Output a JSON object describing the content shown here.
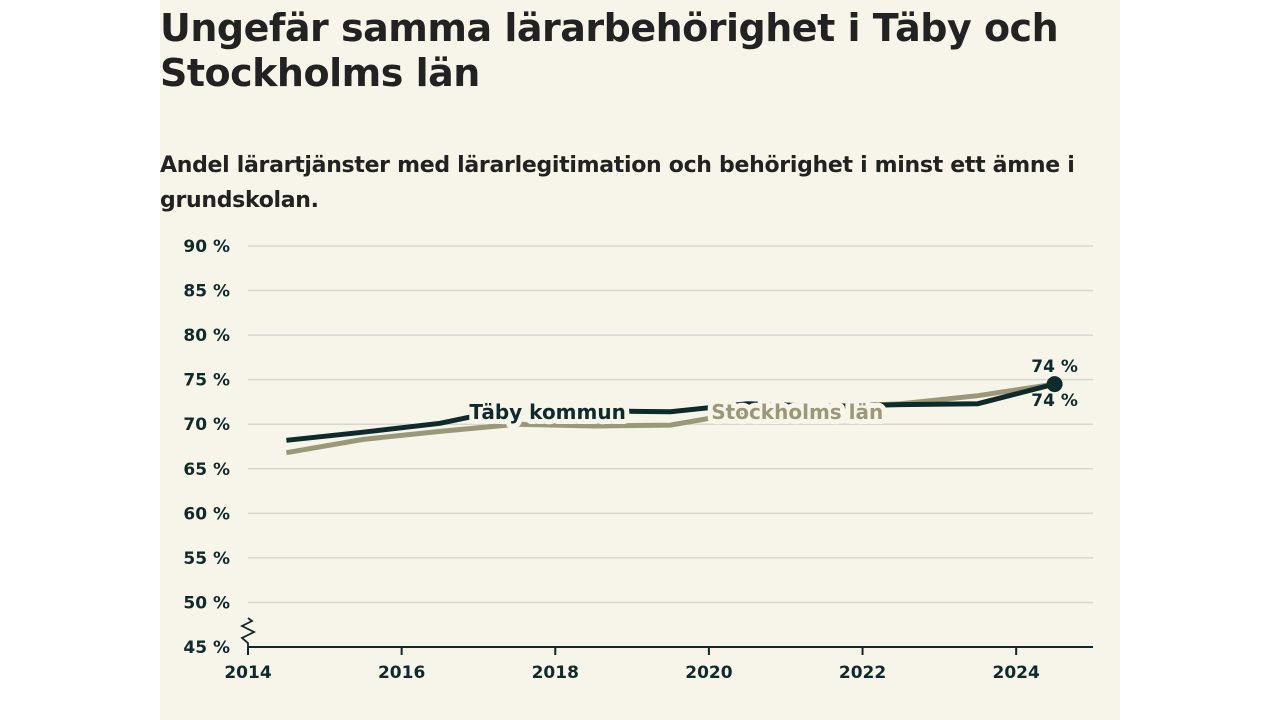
{
  "title": "Ungefär samma lärarbehörighet i Täby och Stockholms län",
  "subtitle": "Andel lärartjänster med lärarlegitimation och behörighet i minst ett ämne i grundskolan.",
  "chart_data": {
    "type": "line",
    "x_ticks": [
      2014,
      2016,
      2018,
      2020,
      2022,
      2024
    ],
    "x_tick_labels": [
      "2014",
      "2016",
      "2018",
      "2020",
      "2022",
      "2024"
    ],
    "xlim": [
      2014,
      2025
    ],
    "y_ticks": [
      45,
      50,
      55,
      60,
      65,
      70,
      75,
      80,
      85,
      90
    ],
    "y_tick_labels": [
      "45 %",
      "50 %",
      "55 %",
      "60 %",
      "65 %",
      "70 %",
      "75 %",
      "80 %",
      "85 %",
      "90 %"
    ],
    "ylim": [
      45,
      90
    ],
    "axis_break": true,
    "grid": true,
    "series": [
      {
        "name": "Täby kommun",
        "color": "#0e2a2a",
        "x": [
          2014.5,
          2015.5,
          2016.5,
          2017.5,
          2018.5,
          2019.5,
          2020.5,
          2021.5,
          2022.5,
          2023.5,
          2024.5
        ],
        "y": [
          68.2,
          69.1,
          70.1,
          71.9,
          71.5,
          71.4,
          72.3,
          72.0,
          72.2,
          72.3,
          74.5
        ],
        "end_label": "74 %"
      },
      {
        "name": "Stockholms län",
        "color": "#9a9878",
        "x": [
          2014.5,
          2015.5,
          2016.5,
          2017.5,
          2018.5,
          2019.5,
          2020.5,
          2021.5,
          2022.5,
          2023.5,
          2024.5
        ],
        "y": [
          66.8,
          68.3,
          69.2,
          70.0,
          69.8,
          69.9,
          71.4,
          71.9,
          72.3,
          73.2,
          74.5
        ],
        "end_label": "74 %"
      }
    ]
  }
}
